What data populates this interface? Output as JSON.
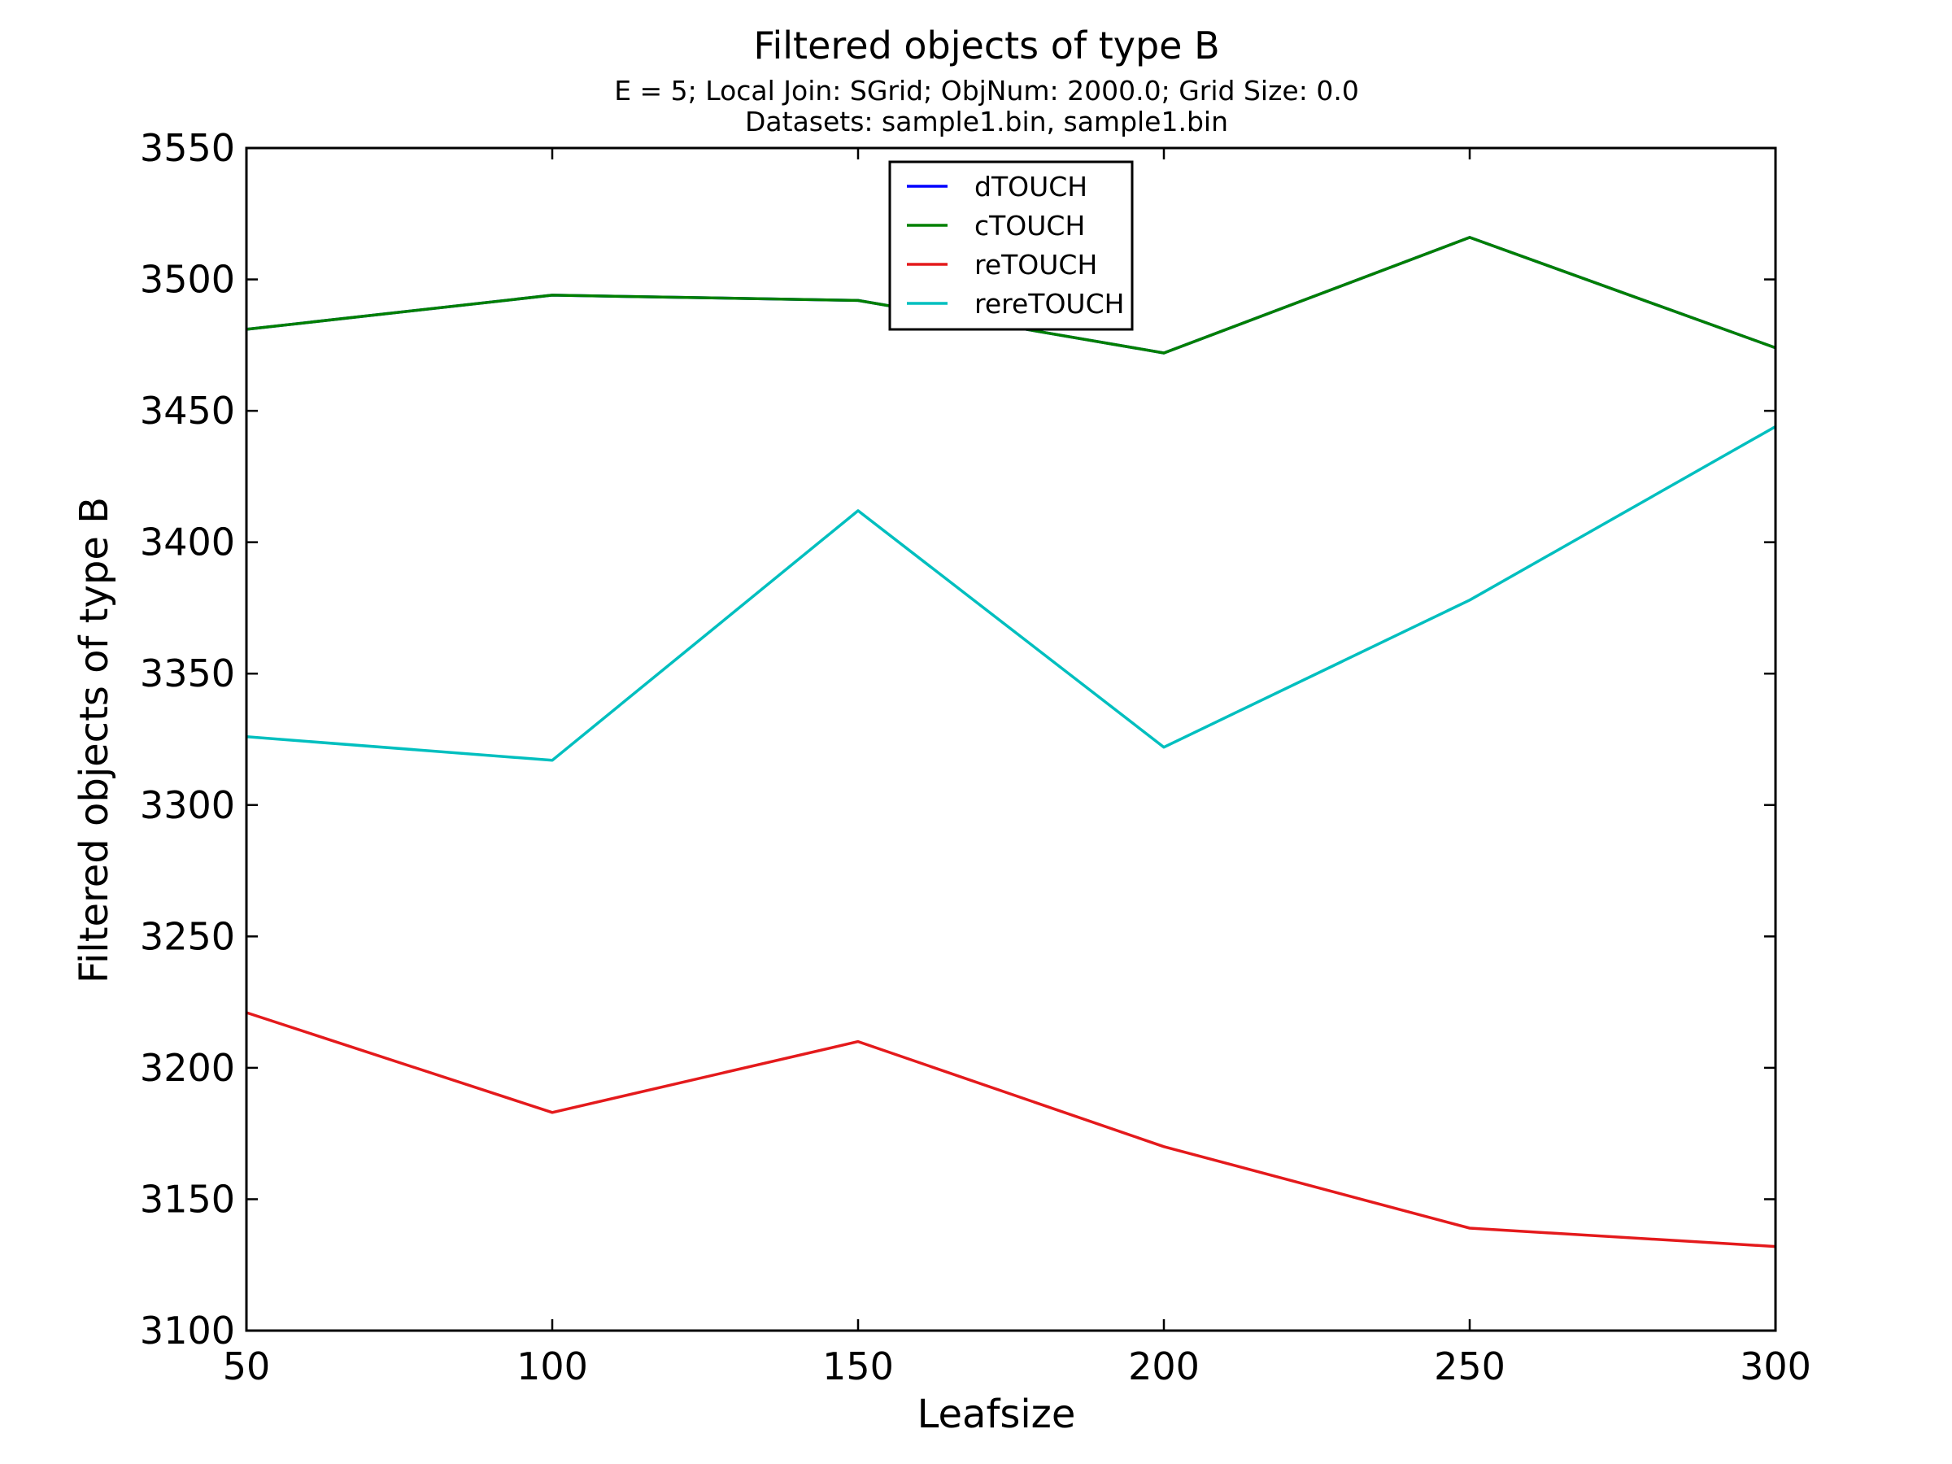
{
  "chart_data": {
    "type": "line",
    "title": "Filtered objects of type B",
    "subtitle_lines": [
      "E = 5; Local Join: SGrid; ObjNum: 2000.0; Grid Size: 0.0",
      "Datasets: sample1.bin, sample1.bin"
    ],
    "xlabel": "Leafsize",
    "ylabel": "Filtered objects of type B",
    "x": [
      50,
      100,
      150,
      200,
      250,
      300
    ],
    "xlim": [
      50,
      300
    ],
    "ylim": [
      3100,
      3550
    ],
    "xticks": [
      50,
      100,
      150,
      200,
      250,
      300
    ],
    "yticks": [
      3100,
      3150,
      3200,
      3250,
      3300,
      3350,
      3400,
      3450,
      3500,
      3550
    ],
    "grid": false,
    "legend_position": "top-center",
    "series": [
      {
        "name": "dTOUCH",
        "color": "#0000ff",
        "values": [
          3481,
          3494,
          3492,
          3472,
          3516,
          3474
        ]
      },
      {
        "name": "cTOUCH",
        "color": "#008000",
        "values": [
          3481,
          3494,
          3492,
          3472,
          3516,
          3474
        ]
      },
      {
        "name": "reTOUCH",
        "color": "#e41a1c",
        "values": [
          3221,
          3183,
          3210,
          3170,
          3139,
          3132
        ]
      },
      {
        "name": "rereTOUCH",
        "color": "#00bfbf",
        "values": [
          3326,
          3317,
          3412,
          3322,
          3378,
          3444
        ]
      }
    ]
  }
}
